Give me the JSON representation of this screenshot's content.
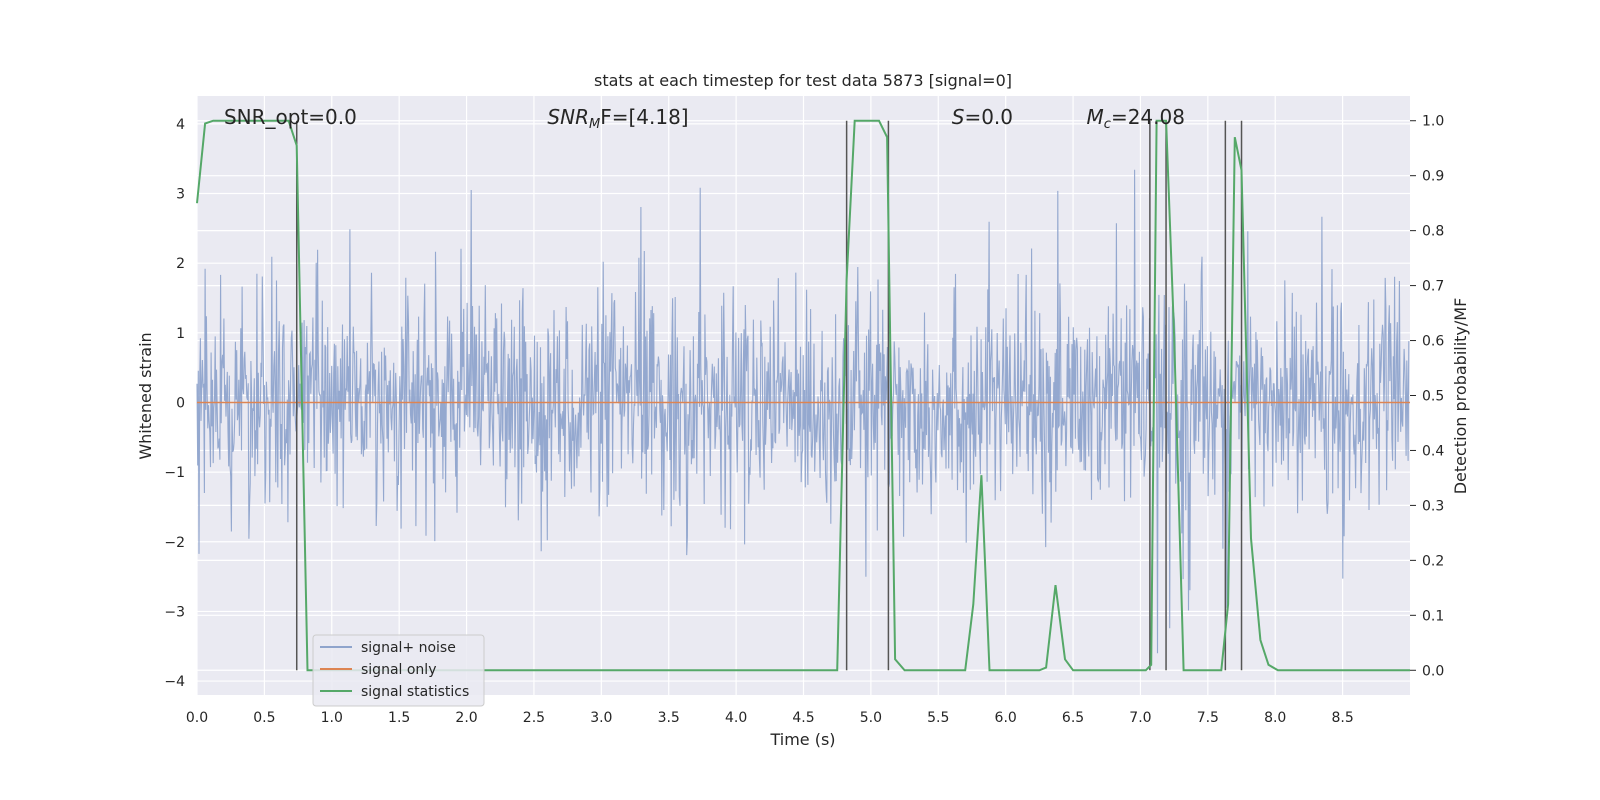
{
  "chart_data": {
    "type": "line",
    "title": "stats at each timestep for test data 5873 [signal=0]",
    "xlabel": "Time (s)",
    "ylabel": "Whitened strain",
    "ylabel_right": "Detection probability/MF",
    "xlim": [
      0.0,
      9.0
    ],
    "ylim": [
      -4.2,
      4.4
    ],
    "ylim_right": [
      -0.045,
      1.045
    ],
    "xticks": [
      "0.0",
      "0.5",
      "1.0",
      "1.5",
      "2.0",
      "2.5",
      "3.0",
      "3.5",
      "4.0",
      "4.5",
      "5.0",
      "5.5",
      "6.0",
      "6.5",
      "7.0",
      "7.5",
      "8.0",
      "8.5"
    ],
    "xtick_values": [
      0.0,
      0.5,
      1.0,
      1.5,
      2.0,
      2.5,
      3.0,
      3.5,
      4.0,
      4.5,
      5.0,
      5.5,
      6.0,
      6.5,
      7.0,
      7.5,
      8.0,
      8.5
    ],
    "yticks_left": [
      "−4",
      "−3",
      "−2",
      "−1",
      "0",
      "1",
      "2",
      "3",
      "4"
    ],
    "ytick_left_values": [
      -4,
      -3,
      -2,
      -1,
      0,
      1,
      2,
      3,
      4
    ],
    "yticks_right": [
      "0.0",
      "0.1",
      "0.2",
      "0.3",
      "0.4",
      "0.5",
      "0.6",
      "0.7",
      "0.8",
      "0.9",
      "1.0"
    ],
    "ytick_right_values": [
      0.0,
      0.1,
      0.2,
      0.3,
      0.4,
      0.5,
      0.6,
      0.7,
      0.8,
      0.9,
      1.0
    ],
    "grid": true,
    "legend_position": "bottom-left",
    "annotations": [
      {
        "text": "SNR_opt=0.0",
        "x": 0.2,
        "y": 4.1
      },
      {
        "text_main": "SNR",
        "text_sub": "M",
        "text_rest": "F=[4.18]",
        "italic": true,
        "x": 2.6,
        "y": 4.1
      },
      {
        "text_main": "S",
        "text_rest": "=0.0",
        "italic": true,
        "x": 5.6,
        "y": 4.1
      },
      {
        "text_main": "M",
        "text_sub": "c",
        "text_rest": "=24.08",
        "italic": true,
        "x": 6.6,
        "y": 4.1
      }
    ],
    "series": [
      {
        "name": "signal+ noise",
        "color": "#8fa4cc",
        "axis": "left",
        "kind": "noise",
        "envelope_std": 0.62,
        "samples": 1800
      },
      {
        "name": "signal only",
        "color": "#dd8452",
        "axis": "left",
        "x": [
          0.0,
          9.0
        ],
        "values": [
          0.0,
          0.0
        ]
      },
      {
        "name": "signal statistics",
        "color": "#55a868",
        "axis": "right",
        "x": [
          0.0,
          0.06,
          0.12,
          0.55,
          0.68,
          0.74,
          0.82,
          4.75,
          4.82,
          4.88,
          5.06,
          5.12,
          5.18,
          5.25,
          5.7,
          5.76,
          5.82,
          5.88,
          6.25,
          6.3,
          6.37,
          6.44,
          6.5,
          7.04,
          7.08,
          7.12,
          7.19,
          7.25,
          7.32,
          7.6,
          7.65,
          7.7,
          7.75,
          7.82,
          7.89,
          7.95,
          8.02,
          9.0
        ],
        "values": [
          0.85,
          0.995,
          1.0,
          1.0,
          1.0,
          0.955,
          0.0,
          0.0,
          0.71,
          1.0,
          1.0,
          0.97,
          0.02,
          0.0,
          0.0,
          0.12,
          0.355,
          0.0,
          0.0,
          0.005,
          0.155,
          0.02,
          0.0,
          0.0,
          0.01,
          1.0,
          1.0,
          0.61,
          0.0,
          0.0,
          0.12,
          0.97,
          0.91,
          0.24,
          0.055,
          0.01,
          0.0,
          0.0
        ]
      }
    ],
    "vertical_lines": [
      0.74,
      4.82,
      5.13,
      7.07,
      7.19,
      7.63,
      7.75
    ],
    "vertical_line_color": "#555555"
  }
}
